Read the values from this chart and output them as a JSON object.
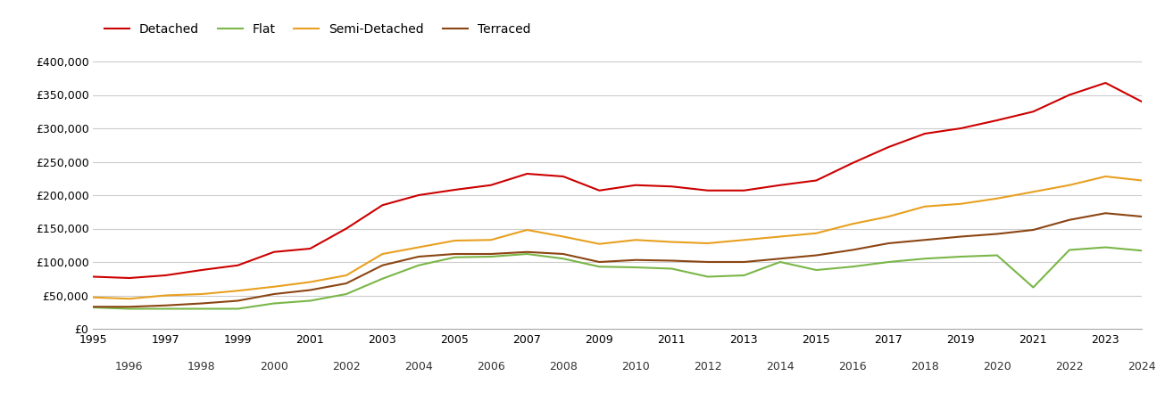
{
  "years": [
    1995,
    1996,
    1997,
    1998,
    1999,
    2000,
    2001,
    2002,
    2003,
    2004,
    2005,
    2006,
    2007,
    2008,
    2009,
    2010,
    2011,
    2012,
    2013,
    2014,
    2015,
    2016,
    2017,
    2018,
    2019,
    2020,
    2021,
    2022,
    2023,
    2024
  ],
  "detached": [
    78000,
    76000,
    80000,
    88000,
    95000,
    115000,
    120000,
    150000,
    185000,
    200000,
    208000,
    215000,
    232000,
    228000,
    207000,
    215000,
    213000,
    207000,
    207000,
    215000,
    222000,
    248000,
    272000,
    292000,
    300000,
    312000,
    325000,
    350000,
    368000,
    340000
  ],
  "flat": [
    32000,
    30000,
    30000,
    30000,
    30000,
    38000,
    42000,
    52000,
    75000,
    95000,
    107000,
    108000,
    112000,
    105000,
    93000,
    92000,
    90000,
    78000,
    80000,
    100000,
    88000,
    93000,
    100000,
    105000,
    108000,
    110000,
    62000,
    118000,
    122000,
    117000
  ],
  "semi_detached": [
    47000,
    45000,
    50000,
    52000,
    57000,
    63000,
    70000,
    80000,
    112000,
    122000,
    132000,
    133000,
    148000,
    138000,
    127000,
    133000,
    130000,
    128000,
    133000,
    138000,
    143000,
    157000,
    168000,
    183000,
    187000,
    195000,
    205000,
    215000,
    228000,
    222000
  ],
  "terraced": [
    33000,
    33000,
    35000,
    38000,
    42000,
    52000,
    58000,
    68000,
    95000,
    108000,
    112000,
    112000,
    115000,
    112000,
    100000,
    103000,
    102000,
    100000,
    100000,
    105000,
    110000,
    118000,
    128000,
    133000,
    138000,
    142000,
    148000,
    163000,
    173000,
    168000
  ],
  "detached_color": "#cc0000",
  "flat_color": "#7ab648",
  "semi_detached_color": "#e8a020",
  "terraced_color": "#8B4513",
  "background_color": "#ffffff",
  "grid_color": "#cccccc",
  "ylim": [
    0,
    420000
  ],
  "yticks": [
    0,
    50000,
    100000,
    150000,
    200000,
    250000,
    300000,
    350000,
    400000
  ],
  "legend_labels": [
    "Detached",
    "Flat",
    "Semi-Detached",
    "Terraced"
  ],
  "xlim_left": 1995,
  "xlim_right": 2024
}
